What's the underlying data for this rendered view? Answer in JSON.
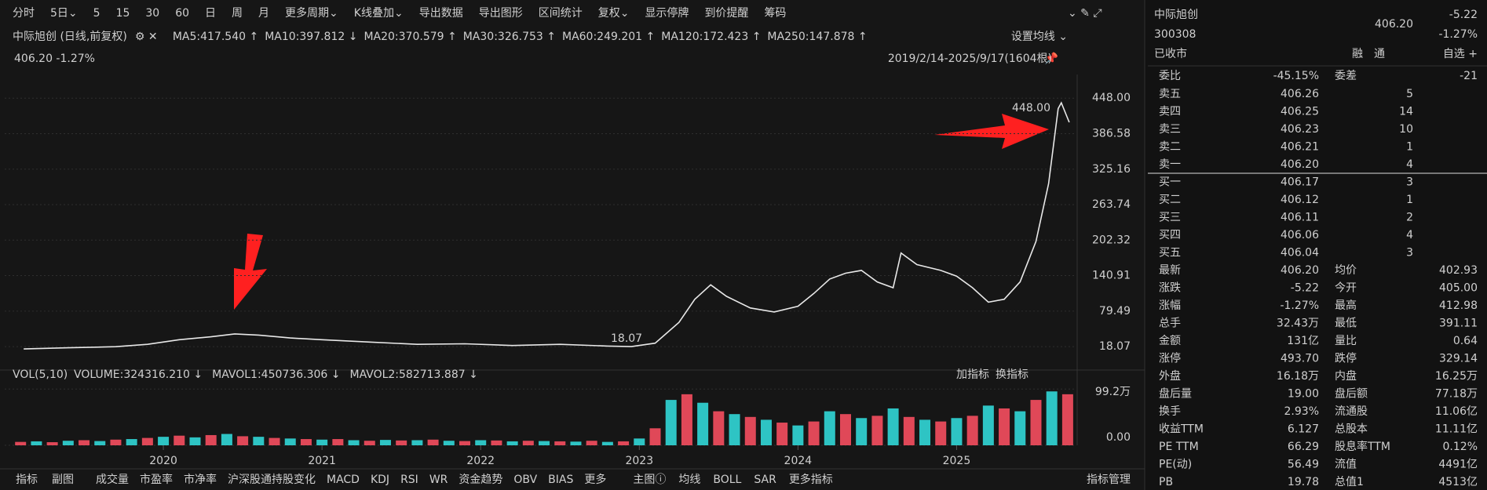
{
  "toolbar": [
    {
      "text": "分时"
    },
    {
      "text": "5日⌄"
    },
    {
      "text": "5"
    },
    {
      "text": "15"
    },
    {
      "text": "30"
    },
    {
      "text": "60"
    },
    {
      "text": "日",
      "color": "#ff5a1f"
    },
    {
      "text": "周"
    },
    {
      "text": "月"
    },
    {
      "text": "更多周期⌄"
    },
    {
      "text": "K线叠加⌄"
    },
    {
      "text": "导出数据"
    },
    {
      "text": "导出图形"
    },
    {
      "text": "区间统计"
    },
    {
      "text": "复权⌄",
      "color": "#ff5a1f"
    },
    {
      "text": "显示停牌"
    },
    {
      "text": "到价提醒"
    },
    {
      "text": "筹码"
    }
  ],
  "legend": {
    "title": "中际旭创 (日线,前复权)",
    "items": [
      {
        "text": "MA5:417.540 ↑",
        "color": "#ffffff"
      },
      {
        "text": "MA10:397.812 ↓",
        "color": "#f2c230"
      },
      {
        "text": "MA20:370.579 ↑",
        "color": "#e34fe3"
      },
      {
        "text": "MA30:326.753 ↑",
        "color": "#4fc44f"
      },
      {
        "text": "MA60:249.201 ↑",
        "color": "#43b8e0"
      },
      {
        "text": "MA120:172.423 ↑",
        "color": "#f08a24"
      },
      {
        "text": "MA250:147.878 ↑",
        "color": "#f0506e"
      }
    ],
    "quote": "406.20 -1.27%",
    "range": "2019/2/14-2025/9/17(1604根)",
    "settings": "设置均线 ⌄"
  },
  "chart_data": [
    {
      "type": "line",
      "title": "中际旭创",
      "x": [
        2019.12,
        2019.4,
        2019.7,
        2019.9,
        2020.1,
        2020.3,
        2020.45,
        2020.6,
        2020.8,
        2021.0,
        2021.3,
        2021.6,
        2021.9,
        2022.2,
        2022.5,
        2022.8,
        2022.95,
        2023.1,
        2023.25,
        2023.35,
        2023.45,
        2023.55,
        2023.7,
        2023.85,
        2024.0,
        2024.1,
        2024.2,
        2024.3,
        2024.4,
        2024.5,
        2024.6,
        2024.65,
        2024.75,
        2024.9,
        2025.0,
        2025.1,
        2025.2,
        2025.3,
        2025.4,
        2025.5,
        2025.58,
        2025.64,
        2025.66,
        2025.71
      ],
      "series": [
        {
          "name": "中际旭创",
          "color": "#e8e8e8",
          "values": [
            14,
            16,
            18,
            22,
            30,
            35,
            40,
            38,
            33,
            30,
            26,
            22,
            23,
            20,
            22,
            19,
            18.07,
            24,
            60,
            100,
            125,
            105,
            85,
            78,
            88,
            110,
            135,
            145,
            150,
            130,
            120,
            180,
            160,
            150,
            140,
            120,
            95,
            100,
            130,
            200,
            300,
            430,
            440,
            406.2
          ]
        }
      ],
      "xlim": [
        2019.0,
        2025.75
      ],
      "xticks": [
        2020,
        2021,
        2022,
        2023,
        2024,
        2025
      ],
      "ylim": [
        -13,
        489
      ],
      "yticks": [
        18.07,
        79.49,
        140.91,
        202.32,
        263.74,
        325.16,
        386.58,
        {
          "value": 448,
          "label": "448.00"
        }
      ],
      "annotations": [
        {
          "text": "448.00"
        },
        {
          "text": "18.07"
        }
      ],
      "grid": true
    },
    {
      "type": "bar",
      "title": "VOL(5,10)",
      "legend": [
        {
          "text": "VOLUME:324316.210 ↓",
          "color": "#ffffff"
        },
        {
          "text": "MAVOL1:450736.306 ↓",
          "color": "#f2c230"
        },
        {
          "text": "MAVOL2:582713.887 ↓",
          "color": "#e34fe3"
        }
      ],
      "x": [
        2019.1,
        2019.2,
        2019.3,
        2019.4,
        2019.5,
        2019.6,
        2019.7,
        2019.8,
        2019.9,
        2020.0,
        2020.1,
        2020.2,
        2020.3,
        2020.4,
        2020.5,
        2020.6,
        2020.7,
        2020.8,
        2020.9,
        2021.0,
        2021.1,
        2021.2,
        2021.3,
        2021.4,
        2021.5,
        2021.6,
        2021.7,
        2021.8,
        2021.9,
        2022.0,
        2022.1,
        2022.2,
        2022.3,
        2022.4,
        2022.5,
        2022.6,
        2022.7,
        2022.8,
        2022.9,
        2023.0,
        2023.1,
        2023.2,
        2023.3,
        2023.4,
        2023.5,
        2023.6,
        2023.7,
        2023.8,
        2023.9,
        2024.0,
        2024.1,
        2024.2,
        2024.3,
        2024.4,
        2024.5,
        2024.6,
        2024.7,
        2024.8,
        2024.9,
        2025.0,
        2025.1,
        2025.2,
        2025.3,
        2025.4,
        2025.5,
        2025.6,
        2025.7
      ],
      "values": [
        60000,
        70000,
        55000,
        80000,
        90000,
        75000,
        100000,
        110000,
        130000,
        150000,
        170000,
        140000,
        180000,
        200000,
        160000,
        150000,
        130000,
        120000,
        110000,
        100000,
        110000,
        90000,
        80000,
        95000,
        85000,
        90000,
        100000,
        80000,
        75000,
        90000,
        85000,
        70000,
        80000,
        75000,
        70000,
        65000,
        80000,
        60000,
        70000,
        120000,
        300000,
        800000,
        900000,
        750000,
        600000,
        550000,
        500000,
        450000,
        400000,
        350000,
        420000,
        600000,
        550000,
        480000,
        520000,
        650000,
        500000,
        450000,
        420000,
        480000,
        520000,
        700000,
        650000,
        600000,
        800000,
        950000,
        900000
      ],
      "colors": [
        "#e04858",
        "#2ec4c4"
      ],
      "xlim": [
        2019.0,
        2025.75
      ],
      "ylim": [
        0,
        1050000
      ],
      "yticks": [
        {
          "value": 0,
          "label": "0.00"
        },
        {
          "value": 992000,
          "label": "99.2万"
        }
      ],
      "buttons": [
        "加指标",
        "换指标"
      ]
    }
  ],
  "tabs_left": [
    "指标",
    "副图"
  ],
  "tabs": [
    {
      "text": "成交量",
      "color": "#ff5a1f"
    },
    {
      "text": "市盈率"
    },
    {
      "text": "市净率"
    },
    {
      "text": "沪深股通持股变化"
    },
    {
      "text": "MACD"
    },
    {
      "text": "KDJ"
    },
    {
      "text": "RSI"
    },
    {
      "text": "WR"
    },
    {
      "text": "资金趋势"
    },
    {
      "text": "OBV"
    },
    {
      "text": "BIAS"
    },
    {
      "text": "更多"
    }
  ],
  "tabs_main": [
    {
      "text": "主图ⓘ"
    },
    {
      "text": "均线"
    },
    {
      "text": "BOLL"
    },
    {
      "text": "SAR"
    },
    {
      "text": "更多指标"
    }
  ],
  "tab_manage": "指标管理",
  "quote": {
    "name": "中际旭创",
    "code": "300308",
    "price": "406.20",
    "change": "-5.22",
    "pct": "-1.27%",
    "status": "已收市",
    "tags": [
      "融",
      "通"
    ],
    "watch": "自选 +"
  },
  "ratio": {
    "label": "委比",
    "value": "-45.15%",
    "label2": "委差",
    "value2": "-21"
  },
  "book": [
    [
      "卖五",
      "406.26",
      "5"
    ],
    [
      "卖四",
      "406.25",
      "14"
    ],
    [
      "卖三",
      "406.23",
      "10"
    ],
    [
      "卖二",
      "406.21",
      "1"
    ],
    [
      "卖一",
      "406.20",
      "4"
    ],
    [
      "买一",
      "406.17",
      "3"
    ],
    [
      "买二",
      "406.12",
      "1"
    ],
    [
      "买三",
      "406.11",
      "2"
    ],
    [
      "买四",
      "406.06",
      "4"
    ],
    [
      "买五",
      "406.04",
      "3"
    ]
  ],
  "stats": [
    [
      {
        "label": "最新"
      },
      {
        "value": "406.20",
        "color": "#2fc15f"
      },
      {
        "label": "均价"
      },
      {
        "value": "402.93",
        "color": "#2fc15f"
      }
    ],
    [
      {
        "label": "涨跌"
      },
      {
        "value": "-5.22",
        "color": "#2fc15f"
      },
      {
        "label": "今开"
      },
      {
        "value": "405.00",
        "color": "#2fc15f"
      }
    ],
    [
      {
        "label": "涨幅"
      },
      {
        "value": "-1.27%",
        "color": "#2fc15f"
      },
      {
        "label": "最高"
      },
      {
        "value": "412.98",
        "color": "#ff4040"
      }
    ],
    [
      {
        "label": "总手"
      },
      {
        "value": "32.43万"
      },
      {
        "label": "最低"
      },
      {
        "value": "391.11",
        "color": "#2fc15f"
      }
    ],
    [
      {
        "label": "金额"
      },
      {
        "value": "131亿",
        "color": "#43b8e0"
      },
      {
        "label": "量比"
      },
      {
        "value": "0.64"
      }
    ],
    [
      {
        "label": "涨停"
      },
      {
        "value": "493.70",
        "color": "#ff4040"
      },
      {
        "label": "跌停"
      },
      {
        "value": "329.14",
        "color": "#2fc15f"
      }
    ],
    [
      {
        "label": "外盘"
      },
      {
        "value": "16.18万",
        "color": "#ff4040"
      },
      {
        "label": "内盘"
      },
      {
        "value": "16.25万",
        "color": "#2fc15f"
      }
    ],
    [
      {
        "label": "盘后量"
      },
      {
        "value": "19.00"
      },
      {
        "label": "盘后额"
      },
      {
        "value": "77.18万",
        "color": "#43b8e0"
      }
    ],
    [
      {
        "label": "换手"
      },
      {
        "value": "2.93%"
      },
      {
        "label": "流通股"
      },
      {
        "value": "11.06亿"
      }
    ],
    [
      {
        "label": "收益TTM"
      },
      {
        "value": "6.127"
      },
      {
        "label": "总股本"
      },
      {
        "value": "11.11亿"
      }
    ],
    [
      {
        "label": "PE TTM"
      },
      {
        "value": "66.29"
      },
      {
        "label": "股息率TTM"
      },
      {
        "value": "0.12%"
      }
    ],
    [
      {
        "label": "PE(动)"
      },
      {
        "value": "56.49"
      },
      {
        "label": "流值"
      },
      {
        "value": "4491亿"
      }
    ],
    [
      {
        "label": "PB"
      },
      {
        "value": "19.78"
      },
      {
        "label": "总值1"
      },
      {
        "value": "4513亿"
      }
    ]
  ]
}
